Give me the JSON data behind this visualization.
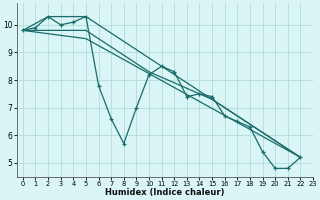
{
  "xlabel": "Humidex (Indice chaleur)",
  "background_color": "#d9f5f5",
  "grid_color": "#b8dede",
  "line_color": "#1a6b6b",
  "xlim": [
    -0.5,
    23
  ],
  "ylim": [
    4.5,
    10.8
  ],
  "xticks": [
    0,
    1,
    2,
    3,
    4,
    5,
    6,
    7,
    8,
    9,
    10,
    11,
    12,
    13,
    14,
    15,
    16,
    17,
    18,
    19,
    20,
    21,
    22,
    23
  ],
  "yticks": [
    5,
    6,
    7,
    8,
    9,
    10
  ],
  "series": [
    {
      "x": [
        0,
        1,
        2,
        3,
        4,
        5,
        6,
        7,
        8,
        9,
        10,
        11,
        12,
        13,
        14,
        15,
        16,
        17,
        18,
        19,
        20,
        21,
        22
      ],
      "y": [
        9.8,
        9.9,
        10.3,
        10.0,
        10.1,
        10.3,
        7.8,
        6.6,
        5.7,
        7.0,
        8.2,
        8.5,
        8.3,
        7.4,
        7.5,
        7.4,
        6.7,
        6.5,
        6.3,
        5.4,
        4.8,
        4.8,
        5.2
      ],
      "marker": true
    },
    {
      "x": [
        0,
        2,
        5,
        22
      ],
      "y": [
        9.8,
        10.3,
        10.3,
        5.2
      ],
      "marker": false
    },
    {
      "x": [
        0,
        5,
        10,
        15,
        22
      ],
      "y": [
        9.8,
        9.8,
        8.3,
        7.3,
        5.2
      ],
      "marker": false
    },
    {
      "x": [
        0,
        5,
        22
      ],
      "y": [
        9.8,
        9.5,
        5.2
      ],
      "marker": false
    }
  ]
}
